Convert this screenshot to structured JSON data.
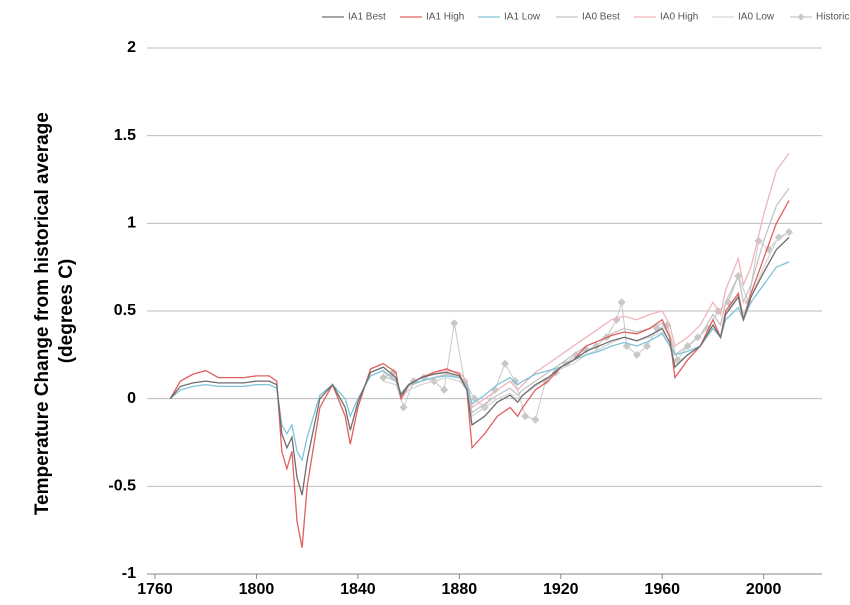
{
  "chart_data": {
    "type": "line",
    "ylabel": [
      "Temperature Change from historical average",
      "(degrees C)"
    ],
    "xlim": [
      1760,
      2023
    ],
    "xticks": [
      1760,
      1800,
      1840,
      1880,
      1920,
      1960,
      2000
    ],
    "ylim": [
      -1,
      2
    ],
    "yticks": [
      -1,
      -0.5,
      0,
      0.5,
      1,
      1.5,
      2
    ],
    "grid": true,
    "legend": "top",
    "x": [
      1766,
      1770,
      1775,
      1780,
      1785,
      1790,
      1795,
      1800,
      1805,
      1808,
      1810,
      1812,
      1814,
      1816,
      1818,
      1820,
      1825,
      1830,
      1835,
      1837,
      1840,
      1845,
      1850,
      1855,
      1857,
      1860,
      1865,
      1870,
      1875,
      1880,
      1883,
      1885,
      1890,
      1895,
      1900,
      1903,
      1905,
      1910,
      1915,
      1920,
      1925,
      1930,
      1935,
      1940,
      1945,
      1950,
      1955,
      1960,
      1963,
      1965,
      1970,
      1975,
      1980,
      1983,
      1985,
      1990,
      1992,
      1995,
      2000,
      2005,
      2010
    ],
    "series": [
      {
        "name": "IA1 Best",
        "color": "#6e6e6e",
        "values": [
          0,
          0.07,
          0.09,
          0.1,
          0.09,
          0.09,
          0.09,
          0.1,
          0.1,
          0.08,
          -0.2,
          -0.28,
          -0.22,
          -0.45,
          -0.55,
          -0.35,
          0,
          0.08,
          -0.05,
          -0.18,
          -0.02,
          0.15,
          0.18,
          0.12,
          0.02,
          0.08,
          0.12,
          0.14,
          0.15,
          0.13,
          0.05,
          -0.15,
          -0.1,
          -0.02,
          0.02,
          -0.02,
          0.02,
          0.08,
          0.12,
          0.18,
          0.22,
          0.27,
          0.3,
          0.33,
          0.35,
          0.33,
          0.36,
          0.4,
          0.32,
          0.18,
          0.25,
          0.3,
          0.42,
          0.35,
          0.48,
          0.58,
          0.45,
          0.58,
          0.72,
          0.85,
          0.92
        ]
      },
      {
        "name": "IA1 High",
        "color": "#e06060",
        "values": [
          0,
          0.1,
          0.14,
          0.16,
          0.12,
          0.12,
          0.12,
          0.13,
          0.13,
          0.1,
          -0.3,
          -0.4,
          -0.3,
          -0.7,
          -0.85,
          -0.5,
          -0.05,
          0.08,
          -0.1,
          -0.26,
          -0.05,
          0.17,
          0.2,
          0.15,
          0,
          0.08,
          0.12,
          0.15,
          0.17,
          0.14,
          0.05,
          -0.28,
          -0.2,
          -0.1,
          -0.05,
          -0.1,
          -0.05,
          0.05,
          0.1,
          0.18,
          0.22,
          0.3,
          0.33,
          0.36,
          0.38,
          0.37,
          0.4,
          0.45,
          0.35,
          0.12,
          0.22,
          0.3,
          0.45,
          0.35,
          0.5,
          0.6,
          0.45,
          0.6,
          0.8,
          1.0,
          1.13
        ]
      },
      {
        "name": "IA1 Low",
        "color": "#80c4d8",
        "values": [
          0,
          0.05,
          0.07,
          0.08,
          0.07,
          0.07,
          0.07,
          0.08,
          0.08,
          0.06,
          -0.15,
          -0.2,
          -0.15,
          -0.3,
          -0.35,
          -0.22,
          0.02,
          0.08,
          0,
          -0.1,
          0,
          0.13,
          0.16,
          0.1,
          0.03,
          0.08,
          0.1,
          0.12,
          0.13,
          0.12,
          0.08,
          -0.03,
          0.02,
          0.08,
          0.12,
          0.08,
          0.1,
          0.14,
          0.16,
          0.18,
          0.22,
          0.25,
          0.27,
          0.3,
          0.32,
          0.3,
          0.33,
          0.37,
          0.3,
          0.25,
          0.27,
          0.3,
          0.4,
          0.35,
          0.45,
          0.52,
          0.45,
          0.55,
          0.65,
          0.75,
          0.78
        ]
      },
      {
        "name": "IA0 Best",
        "color": "#c4c4c4",
        "values": [
          null,
          null,
          null,
          null,
          null,
          null,
          null,
          null,
          null,
          null,
          null,
          null,
          null,
          null,
          null,
          null,
          null,
          null,
          null,
          null,
          null,
          null,
          0.13,
          0.1,
          0,
          0.07,
          0.1,
          0.12,
          0.14,
          0.12,
          0.07,
          -0.08,
          -0.03,
          0.02,
          0.06,
          0.02,
          0.05,
          0.1,
          0.15,
          0.2,
          0.25,
          0.3,
          0.33,
          0.37,
          0.4,
          0.38,
          0.4,
          0.43,
          0.35,
          0.25,
          0.3,
          0.36,
          0.48,
          0.42,
          0.55,
          0.7,
          0.55,
          0.65,
          0.9,
          1.1,
          1.2
        ]
      },
      {
        "name": "IA0 High",
        "color": "#f0b4bc",
        "values": [
          null,
          null,
          null,
          null,
          null,
          null,
          null,
          null,
          null,
          null,
          null,
          null,
          null,
          null,
          null,
          null,
          null,
          null,
          null,
          null,
          null,
          null,
          0.15,
          0.12,
          0,
          0.08,
          0.12,
          0.14,
          0.16,
          0.15,
          0.1,
          -0.05,
          0,
          0.05,
          0.1,
          0.05,
          0.08,
          0.15,
          0.2,
          0.25,
          0.3,
          0.35,
          0.4,
          0.45,
          0.47,
          0.45,
          0.48,
          0.5,
          0.42,
          0.3,
          0.35,
          0.42,
          0.55,
          0.48,
          0.62,
          0.8,
          0.65,
          0.75,
          1.05,
          1.3,
          1.4
        ]
      },
      {
        "name": "IA0 Low",
        "color": "#d6d6d6",
        "values": [
          null,
          null,
          null,
          null,
          null,
          null,
          null,
          null,
          null,
          null,
          null,
          null,
          null,
          null,
          null,
          null,
          null,
          null,
          null,
          null,
          null,
          null,
          0.1,
          0.08,
          0,
          0.05,
          0.08,
          0.1,
          0.12,
          0.1,
          0.05,
          -0.1,
          -0.05,
          0,
          0.03,
          0,
          0.02,
          0.07,
          0.12,
          0.17,
          0.2,
          0.25,
          0.28,
          0.32,
          0.35,
          0.33,
          0.35,
          0.38,
          0.3,
          0.2,
          0.25,
          0.3,
          0.4,
          0.35,
          0.48,
          0.6,
          0.48,
          0.58,
          0.75,
          0.9,
          0.95
        ]
      },
      {
        "name": "Historic",
        "color": "#c8c8c8",
        "marker": "diamond",
        "x": [
          1850,
          1854,
          1858,
          1862,
          1866,
          1870,
          1874,
          1878,
          1882,
          1886,
          1890,
          1894,
          1898,
          1902,
          1906,
          1910,
          1914,
          1918,
          1922,
          1926,
          1930,
          1934,
          1938,
          1942,
          1944,
          1946,
          1950,
          1954,
          1958,
          1962,
          1966,
          1970,
          1974,
          1978,
          1982,
          1986,
          1990,
          1994,
          1998,
          2002,
          2006,
          2010
        ],
        "values": [
          0.12,
          0.15,
          -0.05,
          0.1,
          0.12,
          0.1,
          0.05,
          0.43,
          0.1,
          0,
          -0.05,
          0.05,
          0.2,
          0.1,
          -0.1,
          -0.12,
          0.1,
          0.15,
          0.2,
          0.25,
          0.28,
          0.3,
          0.35,
          0.45,
          0.55,
          0.3,
          0.25,
          0.3,
          0.4,
          0.42,
          0.22,
          0.3,
          0.35,
          0.4,
          0.5,
          0.55,
          0.7,
          0.55,
          0.9,
          0.85,
          0.92,
          0.95
        ]
      }
    ]
  }
}
